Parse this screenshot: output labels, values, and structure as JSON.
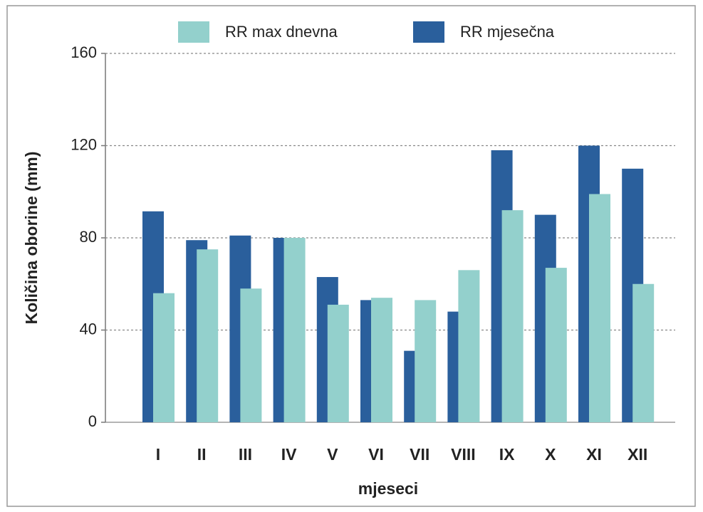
{
  "chart_data": {
    "type": "bar",
    "x_label": "mjeseci",
    "y_label": "Količina oborine (mm)",
    "categories": [
      "I",
      "II",
      "III",
      "IV",
      "V",
      "VI",
      "VII",
      "VIII",
      "IX",
      "X",
      "XI",
      "XII"
    ],
    "series": [
      {
        "name": "RR max dnevna",
        "color": "#93d0cc",
        "values": [
          56,
          75,
          58,
          80,
          51,
          54,
          53,
          66,
          92,
          67,
          99,
          60
        ]
      },
      {
        "name": "RR mjesečna",
        "color": "#2a5f9c",
        "values": [
          91.5,
          79,
          81,
          80,
          63,
          53,
          31,
          48,
          118,
          90,
          120,
          110
        ]
      }
    ],
    "ylim": [
      0,
      160
    ],
    "yticks": [
      0,
      40,
      80,
      120,
      160
    ],
    "grid": true,
    "legend": "top"
  }
}
